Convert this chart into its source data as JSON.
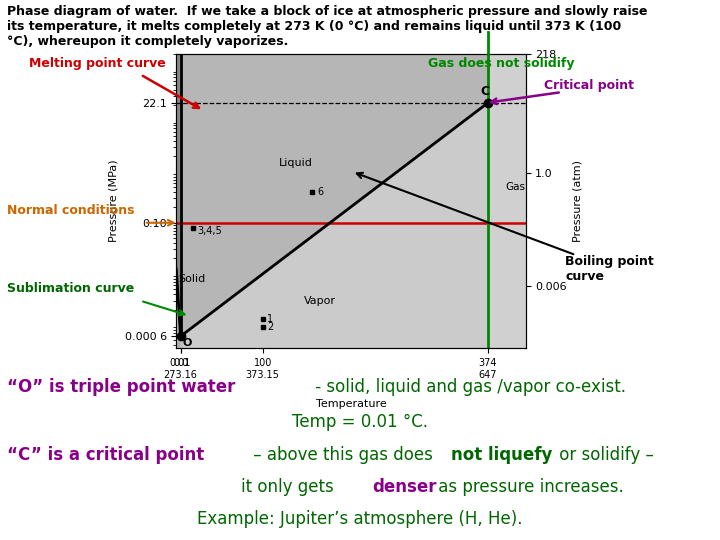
{
  "title_text": "Phase diagram of water.  If we take a block of ice at atmospheric pressure and slowly raise\nits temperature, it melts completely at 273 K (0 °C) and remains liquid until 373 K (100\n°C), whereupon it completely vaporizes.",
  "label_melting": "Melting point curve",
  "label_gas_no_solidify": "Gas does not solidify",
  "label_critical": "Critical point",
  "label_normal": "Normal conditions",
  "label_sublimation": "Sublimation curve",
  "label_boiling": "Boiling point\ncurve",
  "bg_color": "#ffffff",
  "melting_label_color": "#cc0000",
  "gas_label_color": "#008800",
  "critical_label_color": "#880088",
  "normal_label_color": "#cc6600",
  "sublimation_label_color": "#006600",
  "boiling_label_color": "#000000",
  "bottom_O_color": "#880088",
  "bottom_C_color": "#880088",
  "bottom_green_color": "#006600",
  "bottom_denser_color": "#880088",
  "bottom_notliquefy_color": "#006600"
}
